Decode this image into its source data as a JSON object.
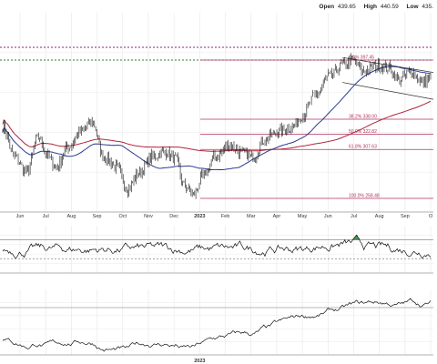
{
  "header": {
    "open_label": "Open",
    "open_value": "439.65",
    "high_label": "High",
    "high_value": "440.59",
    "low_label": "Low",
    "low_value": "435."
  },
  "chart_data": [
    {
      "type": "line",
      "panel": "price",
      "x_labels": [
        "Jun",
        "Jul",
        "Aug",
        "Sep",
        "Oct",
        "Nov",
        "Dec",
        "2023",
        "Feb",
        "Mar",
        "Apr",
        "May",
        "Jun",
        "Jul",
        "Aug",
        "Sep",
        "O"
      ],
      "fibonacci_levels": [
        {
          "label": "0.0%",
          "value": 397.45,
          "display": "0.0% 397.45"
        },
        {
          "label": "38.2%",
          "value": 338.0,
          "display": "38.2% 338.00"
        },
        {
          "label": "50.0%",
          "value": 322.82,
          "display": "50.0% 322.82"
        },
        {
          "label": "61.8%",
          "value": 307.63,
          "display": "61.8% 307.63"
        },
        {
          "label": "100.0%",
          "value": 258.48,
          "display": "100.0% 258.48"
        }
      ],
      "grid": true,
      "colors": {
        "price": "#111111",
        "ma_short": "#2b3a8f",
        "ma_long": "#b0243a",
        "fib": "#b03060",
        "resistance_upper": "#8a1e8a",
        "resistance_lower": "#2e7d32"
      }
    },
    {
      "type": "line",
      "panel": "oscillator",
      "grid": true,
      "colors": {
        "line": "#111111",
        "overbought_fill": "#2e7d32"
      }
    },
    {
      "type": "line",
      "panel": "relative-strength",
      "grid": true,
      "colors": {
        "line": "#111111"
      }
    }
  ]
}
